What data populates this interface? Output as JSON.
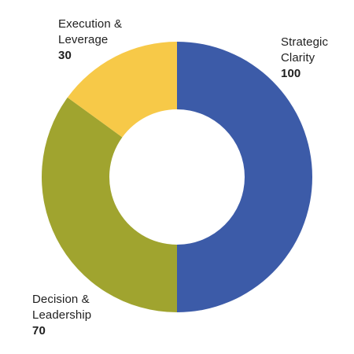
{
  "chart_data": {
    "type": "pie",
    "variant": "donut",
    "title": "",
    "slices": [
      {
        "label": "Strategic\nClarity",
        "value": 100,
        "color": "#3c5ba8"
      },
      {
        "label": "Decision &\nLeadership",
        "value": 70,
        "color": "#a0a42f"
      },
      {
        "label": "Execution &\nLeverage",
        "value": 30,
        "color": "#f7c948"
      }
    ],
    "legend": "none",
    "labels_placement": "outside-each-slice"
  }
}
